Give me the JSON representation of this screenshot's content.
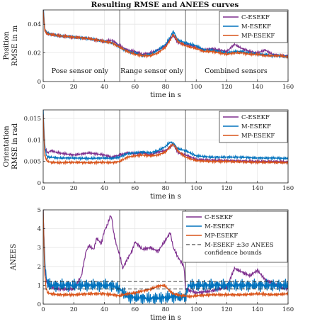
{
  "figure": {
    "title": "Resulting RMSE and ANEES curves"
  },
  "colors": {
    "c": "#7E2F8E",
    "m": "#0072BD",
    "mp": "#D95319",
    "bound": "#222222",
    "divider": "#555555"
  },
  "chart_data": [
    {
      "type": "line",
      "ylabel": [
        "Position",
        "RMSE in m"
      ],
      "xlabel": "time in s",
      "xlim": [
        0,
        160
      ],
      "ylim": [
        0,
        0.05
      ],
      "xticks": [
        0,
        20,
        40,
        60,
        80,
        100,
        120,
        140,
        160
      ],
      "yticks": [
        0,
        0.02,
        0.04
      ],
      "ytick_labels": [
        "0",
        "0.02",
        "0.04"
      ],
      "grid": true,
      "legend": "top-right",
      "dividers": [
        50,
        93
      ],
      "regions": [
        {
          "label": "Pose sensor only",
          "x": 24
        },
        {
          "label": "Range sensor only",
          "x": 71
        },
        {
          "label": "Combined sensors",
          "x": 126
        }
      ],
      "series": [
        {
          "name": "C-ESEKF",
          "color_key": "c",
          "x": [
            0,
            1,
            2,
            3,
            5,
            10,
            20,
            30,
            40,
            45,
            50,
            55,
            60,
            65,
            70,
            75,
            80,
            83,
            85,
            88,
            93,
            100,
            105,
            110,
            120,
            125,
            130,
            135,
            140,
            145,
            150,
            155,
            160
          ],
          "y": [
            0.052,
            0.036,
            0.034,
            0.033,
            0.033,
            0.032,
            0.031,
            0.03,
            0.028,
            0.029,
            0.025,
            0.022,
            0.021,
            0.019,
            0.02,
            0.022,
            0.025,
            0.03,
            0.032,
            0.027,
            0.026,
            0.024,
            0.022,
            0.023,
            0.021,
            0.026,
            0.023,
            0.021,
            0.02,
            0.022,
            0.019,
            0.018,
            0.018
          ]
        },
        {
          "name": "M-ESEKF",
          "color_key": "m",
          "x": [
            0,
            1,
            2,
            3,
            5,
            10,
            20,
            30,
            40,
            45,
            50,
            55,
            60,
            65,
            70,
            75,
            80,
            83,
            85,
            88,
            93,
            100,
            105,
            110,
            120,
            125,
            130,
            135,
            140,
            145,
            150,
            155,
            160
          ],
          "y": [
            0.055,
            0.037,
            0.035,
            0.034,
            0.033,
            0.032,
            0.031,
            0.03,
            0.028,
            0.027,
            0.024,
            0.021,
            0.02,
            0.018,
            0.019,
            0.022,
            0.026,
            0.031,
            0.035,
            0.029,
            0.027,
            0.025,
            0.022,
            0.022,
            0.02,
            0.021,
            0.021,
            0.02,
            0.019,
            0.019,
            0.018,
            0.018,
            0.017
          ]
        },
        {
          "name": "MP-ESEKF",
          "color_key": "mp",
          "x": [
            0,
            1,
            2,
            3,
            5,
            10,
            20,
            30,
            40,
            45,
            50,
            55,
            60,
            65,
            70,
            75,
            80,
            83,
            85,
            88,
            93,
            100,
            105,
            110,
            120,
            125,
            130,
            135,
            140,
            145,
            150,
            155,
            160
          ],
          "y": [
            0.05,
            0.036,
            0.034,
            0.033,
            0.033,
            0.032,
            0.031,
            0.03,
            0.028,
            0.027,
            0.024,
            0.021,
            0.019,
            0.018,
            0.018,
            0.02,
            0.024,
            0.029,
            0.033,
            0.028,
            0.025,
            0.023,
            0.021,
            0.021,
            0.019,
            0.02,
            0.02,
            0.019,
            0.019,
            0.018,
            0.018,
            0.018,
            0.017
          ]
        }
      ]
    },
    {
      "type": "line",
      "ylabel": [
        "Orientation",
        "RMSE in rad"
      ],
      "xlabel": "time in s",
      "xlim": [
        0,
        160
      ],
      "ylim": [
        0,
        0.017
      ],
      "xticks": [
        0,
        20,
        40,
        60,
        80,
        100,
        120,
        140,
        160
      ],
      "yticks": [
        0,
        0.005,
        0.01,
        0.015
      ],
      "ytick_labels": [
        "0",
        "0.005",
        "0.01",
        "0.015"
      ],
      "grid": true,
      "legend": "top-right",
      "dividers": [
        50,
        93
      ],
      "series": [
        {
          "name": "C-ESEKF",
          "color_key": "c",
          "x": [
            0,
            1,
            2,
            3,
            5,
            10,
            20,
            30,
            40,
            45,
            50,
            55,
            60,
            65,
            70,
            75,
            80,
            83,
            85,
            88,
            93,
            100,
            110,
            120,
            130,
            140,
            150,
            160
          ],
          "y": [
            0.016,
            0.008,
            0.0075,
            0.007,
            0.0075,
            0.007,
            0.0065,
            0.007,
            0.0065,
            0.006,
            0.0065,
            0.007,
            0.0068,
            0.007,
            0.0065,
            0.0072,
            0.0075,
            0.0085,
            0.009,
            0.007,
            0.0065,
            0.0055,
            0.0053,
            0.0052,
            0.0051,
            0.005,
            0.005,
            0.0049
          ]
        },
        {
          "name": "M-ESEKF",
          "color_key": "m",
          "x": [
            0,
            1,
            2,
            3,
            5,
            10,
            20,
            30,
            40,
            45,
            50,
            55,
            60,
            65,
            70,
            75,
            80,
            83,
            85,
            88,
            93,
            100,
            110,
            120,
            130,
            140,
            150,
            160
          ],
          "y": [
            0.017,
            0.009,
            0.0065,
            0.006,
            0.006,
            0.0058,
            0.0058,
            0.0057,
            0.0058,
            0.0057,
            0.006,
            0.0068,
            0.007,
            0.0072,
            0.007,
            0.0075,
            0.0085,
            0.0095,
            0.0092,
            0.008,
            0.0075,
            0.0063,
            0.006,
            0.006,
            0.006,
            0.0058,
            0.0058,
            0.0057
          ]
        },
        {
          "name": "MP-ESEKF",
          "color_key": "mp",
          "x": [
            0,
            1,
            2,
            3,
            5,
            10,
            20,
            30,
            40,
            45,
            50,
            55,
            60,
            65,
            70,
            75,
            80,
            83,
            85,
            88,
            93,
            100,
            110,
            120,
            130,
            140,
            150,
            160
          ],
          "y": [
            0.016,
            0.0065,
            0.0055,
            0.005,
            0.0048,
            0.0047,
            0.0048,
            0.0047,
            0.0048,
            0.0047,
            0.005,
            0.006,
            0.0063,
            0.0065,
            0.0063,
            0.0065,
            0.0072,
            0.0085,
            0.009,
            0.0075,
            0.006,
            0.0052,
            0.005,
            0.005,
            0.0049,
            0.0048,
            0.0048,
            0.0047
          ]
        }
      ]
    },
    {
      "type": "line",
      "ylabel": [
        "ANEES"
      ],
      "xlabel": "time in s",
      "xlim": [
        0,
        160
      ],
      "ylim": [
        0,
        5
      ],
      "xticks": [
        0,
        20,
        40,
        60,
        80,
        100,
        120,
        140,
        160
      ],
      "yticks": [
        0,
        1,
        2,
        3,
        4,
        5
      ],
      "ytick_labels": [
        "0",
        "1",
        "2",
        "3",
        "4",
        "5"
      ],
      "grid": true,
      "legend": "top-right",
      "dividers": [
        50,
        93
      ],
      "bounds": {
        "name": "M-ESEKF ±3σ ANEES confidence bounds",
        "lines": [
          "M-ESEKF ±3σ ANEES",
          "confidence bounds"
        ],
        "upper": 1.2,
        "lower": 0.8
      },
      "series": [
        {
          "name": "C-ESEKF",
          "color_key": "c",
          "x": [
            0,
            1,
            2,
            3,
            5,
            10,
            20,
            25,
            28,
            30,
            33,
            35,
            38,
            40,
            42,
            44,
            45,
            46,
            48,
            50,
            52,
            55,
            58,
            60,
            65,
            70,
            75,
            80,
            83,
            85,
            88,
            92,
            93,
            100,
            110,
            115,
            120,
            125,
            130,
            135,
            140,
            145,
            150,
            155,
            160
          ],
          "y": [
            5,
            2.2,
            1.3,
            1.0,
            0.9,
            0.8,
            0.8,
            1.5,
            2.8,
            3.1,
            2.9,
            3.5,
            3.2,
            3.9,
            4.2,
            4.7,
            4.5,
            3.8,
            3.1,
            2.6,
            1.9,
            2.4,
            2.8,
            3.3,
            2.9,
            3.0,
            2.8,
            3.4,
            3.8,
            3.0,
            2.5,
            2.0,
            0.8,
            0.6,
            0.7,
            0.8,
            0.9,
            1.9,
            1.7,
            1.5,
            1.8,
            1.3,
            1.1,
            0.9,
            0.8
          ]
        },
        {
          "name": "M-ESEKF",
          "color_key": "m",
          "x": [
            0,
            1,
            2,
            3,
            5,
            10,
            20,
            30,
            40,
            45,
            50,
            55,
            60,
            70,
            80,
            85,
            90,
            93,
            95,
            100,
            110,
            120,
            130,
            140,
            150,
            160
          ],
          "y": [
            5,
            2.4,
            1.4,
            1.1,
            1.0,
            1.0,
            1.0,
            1.0,
            1.0,
            1.0,
            0.8,
            0.4,
            0.35,
            0.3,
            0.35,
            0.4,
            0.35,
            0.4,
            1.0,
            1.0,
            1.0,
            1.0,
            1.0,
            1.0,
            1.0,
            1.0
          ]
        },
        {
          "name": "MP-ESEKF",
          "color_key": "mp",
          "x": [
            0,
            1,
            2,
            3,
            5,
            10,
            20,
            30,
            40,
            45,
            50,
            55,
            60,
            65,
            70,
            75,
            78,
            80,
            82,
            85,
            88,
            90,
            93,
            95,
            100,
            110,
            120,
            130,
            140,
            150,
            160
          ],
          "y": [
            5,
            1.6,
            0.8,
            0.6,
            0.55,
            0.5,
            0.5,
            0.55,
            0.55,
            0.5,
            0.45,
            0.55,
            0.6,
            0.7,
            0.8,
            0.95,
            1.0,
            0.95,
            0.75,
            0.55,
            0.5,
            0.45,
            0.45,
            0.4,
            0.45,
            0.5,
            0.5,
            0.5,
            0.55,
            0.5,
            0.55
          ]
        }
      ]
    }
  ]
}
